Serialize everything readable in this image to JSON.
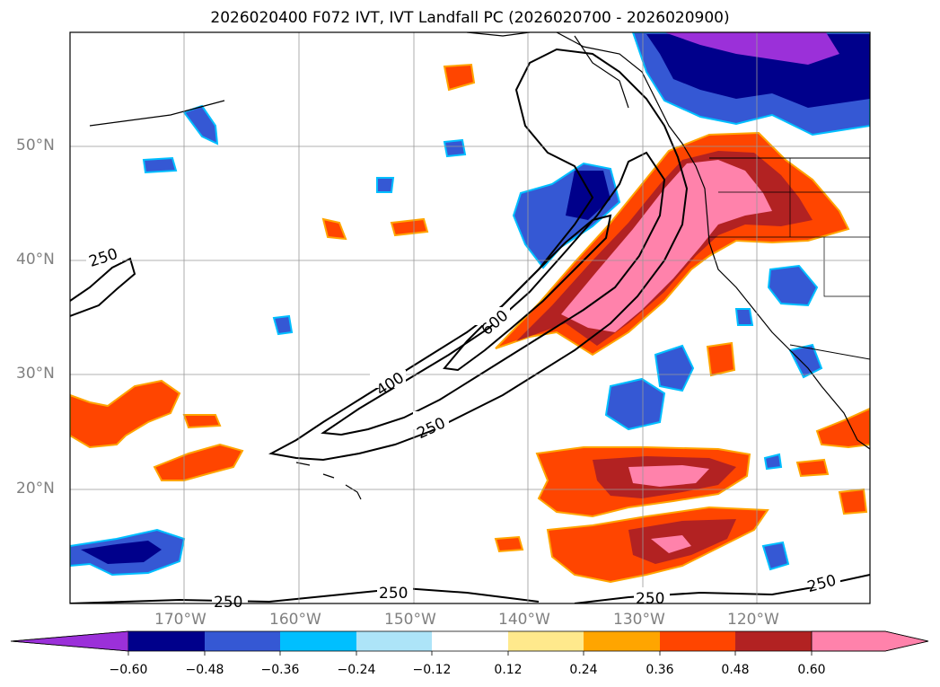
{
  "title": "2026020400 F072 IVT, IVT Landfall PC (2026020700 - 2026020900)",
  "map": {
    "lat_labels": [
      "50°N",
      "40°N",
      "30°N",
      "20°N"
    ],
    "lon_labels": [
      "170°W",
      "160°W",
      "150°W",
      "140°W",
      "130°W",
      "120°W"
    ],
    "contour_labels": [
      "250",
      "400",
      "600",
      "250",
      "250",
      "250",
      "250",
      "250"
    ]
  },
  "colorbar": {
    "ticks": [
      "−0.60",
      "−0.48",
      "−0.36",
      "−0.24",
      "−0.12",
      "0.12",
      "0.24",
      "0.36",
      "0.48",
      "0.60"
    ],
    "colors": [
      "#9b30d9",
      "#00008b",
      "#3558d4",
      "#00bfff",
      "#ade4f8",
      "#ffffff",
      "#ffe98c",
      "#ffa500",
      "#ff4500",
      "#b22222",
      "#ff82ab"
    ]
  }
}
